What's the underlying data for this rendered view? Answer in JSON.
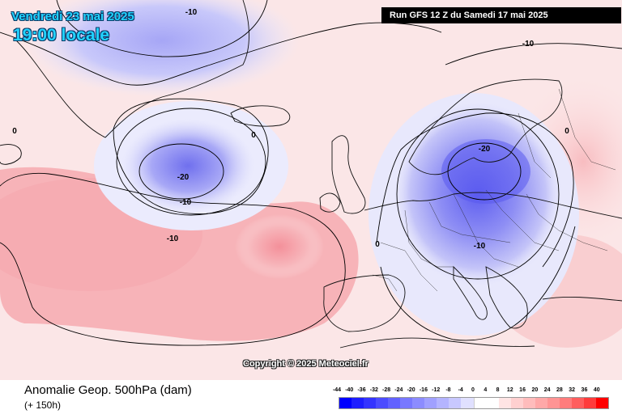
{
  "header": {
    "date_label": "Vendredi 23 mai 2025",
    "time_label": "19:00 locale",
    "run_label": "Run GFS 12 Z du Samedi 17 mai 2025"
  },
  "map": {
    "contour_labels": [
      "-10",
      "-10",
      "-20",
      "-10",
      "-10",
      "-20",
      "-10",
      "0",
      "0",
      "0",
      "0"
    ],
    "copyright": "Copyright © 2025 Meteociel.fr"
  },
  "footer": {
    "field_title": "Anomalie Geop. 500hPa (dam)",
    "forecast_offset": "(+ 150h)"
  },
  "legend": {
    "labels": [
      "-44",
      "-40",
      "-36",
      "-32",
      "-28",
      "-24",
      "-20",
      "-16",
      "-12",
      "-8",
      "-4",
      "0",
      "4",
      "8",
      "12",
      "16",
      "20",
      "24",
      "28",
      "32",
      "36",
      "40"
    ],
    "colors": [
      "#0000ff",
      "#1e1eff",
      "#3434ff",
      "#4c4cff",
      "#6262ff",
      "#7878ff",
      "#8c8cff",
      "#a0a0ff",
      "#b4b4ff",
      "#c8c8ff",
      "#e0e0ff",
      "#ffffff",
      "#ffffff",
      "#ffe4e4",
      "#ffd0d0",
      "#ffbcbc",
      "#ffa8a8",
      "#ff9494",
      "#ff7c7c",
      "#ff5e5e",
      "#ff3c3c",
      "#ff0000"
    ]
  },
  "colors": {
    "ocean_base": "#fbeaea",
    "positive_anomaly": "#f4a0a6",
    "negative_anomaly": "#6e6ef0",
    "accent_cyan": "#22d3ff"
  }
}
